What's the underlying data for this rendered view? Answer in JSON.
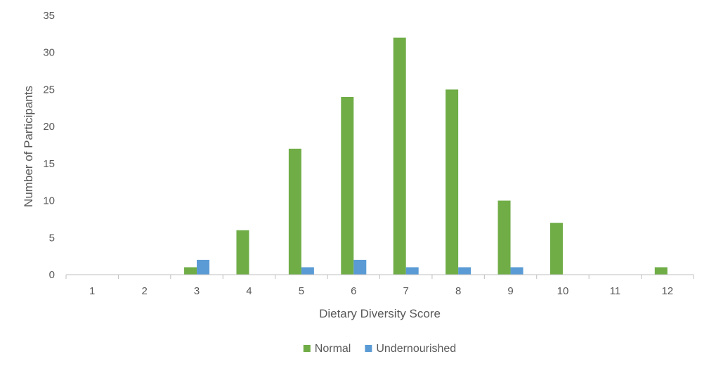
{
  "chart_data": {
    "type": "bar",
    "title": "",
    "xlabel": "Dietary Diversity Score",
    "ylabel": "Number of Participants",
    "categories": [
      "1",
      "2",
      "3",
      "4",
      "5",
      "6",
      "7",
      "8",
      "9",
      "10",
      "11",
      "12"
    ],
    "series": [
      {
        "name": "Normal",
        "color": "#70AD47",
        "values": [
          0,
          0,
          1,
          6,
          17,
          24,
          32,
          25,
          10,
          7,
          0,
          1
        ]
      },
      {
        "name": "Undernourished",
        "color": "#5B9BD5",
        "values": [
          0,
          0,
          2,
          0,
          1,
          2,
          1,
          1,
          1,
          0,
          0,
          0
        ]
      }
    ],
    "ylim": [
      0,
      35
    ],
    "yticks": [
      0,
      5,
      10,
      15,
      20,
      25,
      30,
      35
    ],
    "grid": false,
    "legend_position": "bottom"
  }
}
